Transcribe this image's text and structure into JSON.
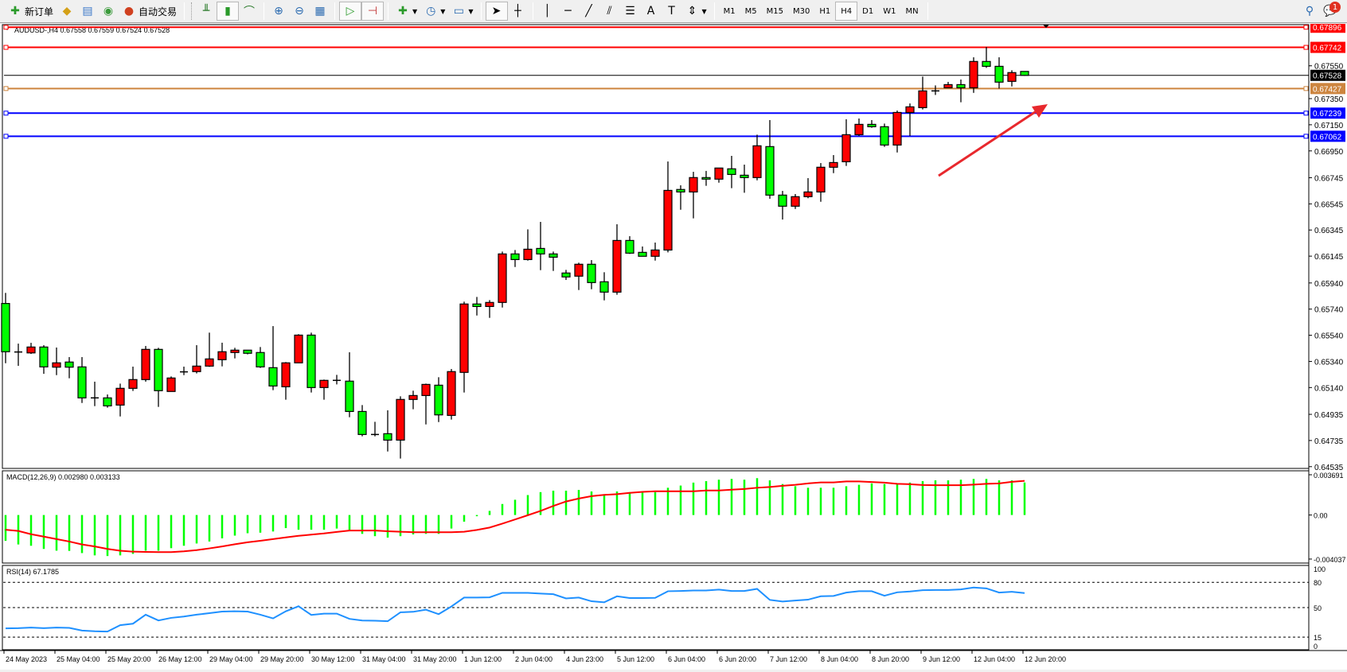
{
  "toolbar": {
    "new_order": "新订单",
    "auto_trading": "自动交易",
    "timeframes": [
      "M1",
      "M5",
      "M15",
      "M30",
      "H1",
      "H4",
      "D1",
      "W1",
      "MN"
    ],
    "active_timeframe": "H4",
    "notification_count": "1"
  },
  "chart": {
    "header": "AUDUSD-,H4  0.67558 0.67559 0.67524 0.67528",
    "symbol": "AUDUSD-",
    "timeframe": "H4",
    "bull_color": "#ff0000",
    "bear_color": "#00ff00",
    "price_ticks": [
      "0.67550",
      "0.67350",
      "0.67150",
      "0.66950",
      "0.66745",
      "0.66545",
      "0.66345",
      "0.66145",
      "0.65940",
      "0.65740",
      "0.65540",
      "0.65340",
      "0.65140",
      "0.64935",
      "0.64735",
      "0.64535"
    ],
    "levels": [
      {
        "price": "0.67896",
        "color": "#ff0000"
      },
      {
        "price": "0.67742",
        "color": "#ff0000"
      },
      {
        "price": "0.67528",
        "color": "#000000"
      },
      {
        "price": "0.67427",
        "color": "#cd853f"
      },
      {
        "price": "0.67239",
        "color": "#0000ff"
      },
      {
        "price": "0.67062",
        "color": "#0000ff"
      }
    ],
    "arrow_color": "#e8282d",
    "candles": [
      [
        0.65783,
        0.65864,
        0.65326,
        0.65414
      ],
      [
        0.65412,
        0.65476,
        0.65306,
        0.65412
      ],
      [
        0.65405,
        0.65482,
        0.65397,
        0.6545
      ],
      [
        0.6545,
        0.65464,
        0.65245,
        0.65298
      ],
      [
        0.65296,
        0.65446,
        0.65235,
        0.65329
      ],
      [
        0.65335,
        0.65373,
        0.65211,
        0.65296
      ],
      [
        0.65298,
        0.65373,
        0.65022,
        0.65061
      ],
      [
        0.65061,
        0.65185,
        0.64998,
        0.65061
      ],
      [
        0.65061,
        0.65087,
        0.64986,
        0.65
      ],
      [
        0.65006,
        0.6517,
        0.64919,
        0.65134
      ],
      [
        0.65134,
        0.653,
        0.65114,
        0.65201
      ],
      [
        0.65201,
        0.65458,
        0.65185,
        0.65432
      ],
      [
        0.65432,
        0.65444,
        0.64992,
        0.65116
      ],
      [
        0.6511,
        0.65225,
        0.6511,
        0.65213
      ],
      [
        0.6526,
        0.653,
        0.65235,
        0.6526
      ],
      [
        0.65262,
        0.65464,
        0.65248,
        0.65304
      ],
      [
        0.65304,
        0.6556,
        0.65298,
        0.65359
      ],
      [
        0.65353,
        0.65483,
        0.65302,
        0.65414
      ],
      [
        0.65408,
        0.65444,
        0.65363,
        0.65426
      ],
      [
        0.65426,
        0.65426,
        0.65394,
        0.65402
      ],
      [
        0.65408,
        0.6545,
        0.6529,
        0.65298
      ],
      [
        0.65292,
        0.6561,
        0.6512,
        0.65152
      ],
      [
        0.65146,
        0.65335,
        0.65047,
        0.65329
      ],
      [
        0.65329,
        0.65548,
        0.65329,
        0.65541
      ],
      [
        0.65541,
        0.6556,
        0.65102,
        0.6514
      ],
      [
        0.6514,
        0.65201,
        0.65047,
        0.65195
      ],
      [
        0.65195,
        0.65237,
        0.65164,
        0.65195
      ],
      [
        0.65189,
        0.6541,
        0.64913,
        0.64957
      ],
      [
        0.64957,
        0.65006,
        0.64767,
        0.64781
      ],
      [
        0.64781,
        0.64878,
        0.64767,
        0.64781
      ],
      [
        0.64787,
        0.64966,
        0.64651,
        0.64738
      ],
      [
        0.64738,
        0.65073,
        0.64597,
        0.65049
      ],
      [
        0.65049,
        0.65116,
        0.64974,
        0.65079
      ],
      [
        0.65079,
        0.6517,
        0.64858,
        0.65164
      ],
      [
        0.65158,
        0.65219,
        0.64876,
        0.64931
      ],
      [
        0.64927,
        0.65282,
        0.64895,
        0.65262
      ],
      [
        0.65256,
        0.65797,
        0.65102,
        0.65779
      ],
      [
        0.65779,
        0.65833,
        0.65691,
        0.6576
      ],
      [
        0.6576,
        0.65809,
        0.65673,
        0.65791
      ],
      [
        0.65791,
        0.6618,
        0.65752,
        0.66162
      ],
      [
        0.66162,
        0.66192,
        0.66062,
        0.66119
      ],
      [
        0.66119,
        0.6635,
        0.66111,
        0.66198
      ],
      [
        0.66204,
        0.66407,
        0.66038,
        0.66162
      ],
      [
        0.66162,
        0.6618,
        0.66032,
        0.66137
      ],
      [
        0.66016,
        0.6604,
        0.65963,
        0.65986
      ],
      [
        0.65992,
        0.66095,
        0.65886,
        0.66083
      ],
      [
        0.66083,
        0.66115,
        0.65892,
        0.65943
      ],
      [
        0.65949,
        0.66022,
        0.65807,
        0.6587
      ],
      [
        0.6587,
        0.66389,
        0.6585,
        0.66265
      ],
      [
        0.66265,
        0.66298,
        0.66162,
        0.66168
      ],
      [
        0.66174,
        0.66219,
        0.66144,
        0.66144
      ],
      [
        0.66144,
        0.66249,
        0.66111,
        0.66192
      ],
      [
        0.66192,
        0.66869,
        0.66174,
        0.66648
      ],
      [
        0.66655,
        0.66687,
        0.665,
        0.66636
      ],
      [
        0.66636,
        0.6679,
        0.66434,
        0.66746
      ],
      [
        0.66746,
        0.66797,
        0.66683,
        0.66734
      ],
      [
        0.66734,
        0.66819,
        0.66707,
        0.66819
      ],
      [
        0.66813,
        0.66912,
        0.66665,
        0.6677
      ],
      [
        0.66764,
        0.66845,
        0.6663,
        0.66746
      ],
      [
        0.66746,
        0.67074,
        0.66725,
        0.66989
      ],
      [
        0.66983,
        0.67186,
        0.66584,
        0.66612
      ],
      [
        0.66612,
        0.66644,
        0.66425,
        0.66527
      ],
      [
        0.66527,
        0.6662,
        0.66506,
        0.666
      ],
      [
        0.666,
        0.66742,
        0.66588,
        0.66636
      ],
      [
        0.66636,
        0.66857,
        0.66561,
        0.66825
      ],
      [
        0.66825,
        0.66918,
        0.6678,
        0.66861
      ],
      [
        0.66867,
        0.67192,
        0.66835,
        0.67074
      ],
      [
        0.67074,
        0.67198,
        0.67064,
        0.67153
      ],
      [
        0.67153,
        0.67186,
        0.67127,
        0.67135
      ],
      [
        0.67135,
        0.67159,
        0.66981,
        0.66995
      ],
      [
        0.66995,
        0.67259,
        0.66938,
        0.67244
      ],
      [
        0.67244,
        0.67313,
        0.67064,
        0.67287
      ],
      [
        0.67281,
        0.67518,
        0.67267,
        0.67409
      ],
      [
        0.67409,
        0.67451,
        0.67378,
        0.67409
      ],
      [
        0.67433,
        0.67478,
        0.67433,
        0.67457
      ],
      [
        0.67457,
        0.67496,
        0.67322,
        0.67433
      ],
      [
        0.67433,
        0.67666,
        0.67394,
        0.67634
      ],
      [
        0.67634,
        0.67745,
        0.67585,
        0.67597
      ],
      [
        0.67597,
        0.67666,
        0.67427,
        0.67476
      ],
      [
        0.67482,
        0.67567,
        0.67443,
        0.67549
      ],
      [
        0.67558,
        0.67559,
        0.67524,
        0.67528
      ]
    ]
  },
  "macd": {
    "label": "MACD(12,26,9) 0.002980 0.003133",
    "ticks": [
      "0.003691",
      "0.00",
      "-0.004037"
    ],
    "main": [
      -0.00237,
      -0.0027,
      -0.00282,
      -0.00311,
      -0.00327,
      -0.00329,
      -0.00349,
      -0.0037,
      -0.00376,
      -0.0037,
      -0.00356,
      -0.00327,
      -0.00327,
      -0.00304,
      -0.00282,
      -0.00261,
      -0.00243,
      -0.00214,
      -0.00189,
      -0.00167,
      -0.00162,
      -0.00151,
      -0.0012,
      -0.00135,
      -0.00135,
      -0.00135,
      -0.00124,
      -0.00137,
      -0.00173,
      -0.00194,
      -0.00207,
      -0.00194,
      -0.00178,
      -0.00173,
      -0.00173,
      -0.00124,
      -0.00061,
      -0.00011,
      0.00038,
      0.00101,
      0.0014,
      0.00183,
      0.0021,
      0.00223,
      0.00223,
      0.0023,
      0.00216,
      0.00189,
      0.00216,
      0.0021,
      0.0021,
      0.0021,
      0.0025,
      0.0027,
      0.00297,
      0.00311,
      0.00324,
      0.00331,
      0.00324,
      0.00338,
      0.00318,
      0.00284,
      0.00264,
      0.0025,
      0.0025,
      0.0025,
      0.00264,
      0.00277,
      0.0029,
      0.00284,
      0.0029,
      0.00297,
      0.00311,
      0.00318,
      0.00318,
      0.00324,
      0.00331,
      0.00331,
      0.00318,
      0.00318,
      0.00298
    ],
    "signal": [
      -0.00135,
      -0.00146,
      -0.00176,
      -0.00198,
      -0.00221,
      -0.00243,
      -0.0027,
      -0.00288,
      -0.00311,
      -0.00327,
      -0.00336,
      -0.00338,
      -0.0034,
      -0.0034,
      -0.00333,
      -0.00322,
      -0.00306,
      -0.00288,
      -0.00268,
      -0.0025,
      -0.00236,
      -0.00221,
      -0.00205,
      -0.00191,
      -0.0018,
      -0.00169,
      -0.00155,
      -0.00142,
      -0.00142,
      -0.00142,
      -0.00149,
      -0.00153,
      -0.00158,
      -0.00158,
      -0.00158,
      -0.00158,
      -0.00153,
      -0.00137,
      -0.00115,
      -0.00079,
      -0.00041,
      -2e-05,
      0.00038,
      0.00083,
      0.00124,
      0.00151,
      0.00173,
      0.00185,
      0.00191,
      0.00203,
      0.00212,
      0.00218,
      0.00218,
      0.00218,
      0.00218,
      0.00225,
      0.00225,
      0.00232,
      0.00239,
      0.0025,
      0.00257,
      0.00268,
      0.00277,
      0.0029,
      0.00299,
      0.00299,
      0.00308,
      0.00308,
      0.00302,
      0.00297,
      0.00286,
      0.00282,
      0.00275,
      0.00273,
      0.00273,
      0.00273,
      0.00279,
      0.00286,
      0.0029,
      0.00304,
      0.00313
    ],
    "hist_color": "#00ff00",
    "signal_color": "#ff0000"
  },
  "rsi": {
    "label": "RSI(14) 67.1785",
    "levels": [
      "100",
      "80",
      "50",
      "15",
      "0"
    ],
    "values": [
      25.3,
      25.6,
      26.3,
      25.6,
      26.3,
      25.9,
      22.8,
      21.9,
      21.6,
      29.1,
      30.9,
      41.6,
      34.7,
      37.8,
      39.4,
      41.6,
      43.4,
      45.3,
      45.6,
      45.3,
      41.6,
      37.2,
      45.6,
      51.6,
      41.3,
      42.8,
      42.8,
      36.6,
      34.7,
      34.4,
      33.8,
      44.4,
      45,
      47.5,
      42.2,
      51.3,
      61.9,
      61.9,
      62.2,
      67.5,
      67.5,
      67.5,
      66.6,
      65.9,
      60.9,
      61.9,
      57.5,
      56.3,
      63.4,
      61.3,
      61.3,
      61.6,
      69.4,
      69.7,
      70.3,
      70.3,
      71.3,
      69.7,
      69.7,
      72.2,
      59.1,
      57.2,
      58.4,
      59.4,
      63.4,
      63.8,
      67.8,
      69.4,
      69.4,
      64.1,
      68.1,
      69.1,
      70.6,
      70.9,
      70.9,
      71.6,
      73.8,
      72.8,
      67.8,
      68.8,
      67.2
    ],
    "line_color": "#1e90ff"
  },
  "time_axis": [
    "24 May 2023",
    "25 May 04:00",
    "25 May 20:00",
    "26 May 12:00",
    "29 May 04:00",
    "29 May 20:00",
    "30 May 12:00",
    "31 May 04:00",
    "31 May 20:00",
    "1 Jun 12:00",
    "2 Jun 04:00",
    "4 Jun 23:00",
    "5 Jun 12:00",
    "6 Jun 04:00",
    "6 Jun 20:00",
    "7 Jun 12:00",
    "8 Jun 04:00",
    "8 Jun 20:00",
    "9 Jun 12:00",
    "12 Jun 04:00",
    "12 Jun 20:00"
  ]
}
